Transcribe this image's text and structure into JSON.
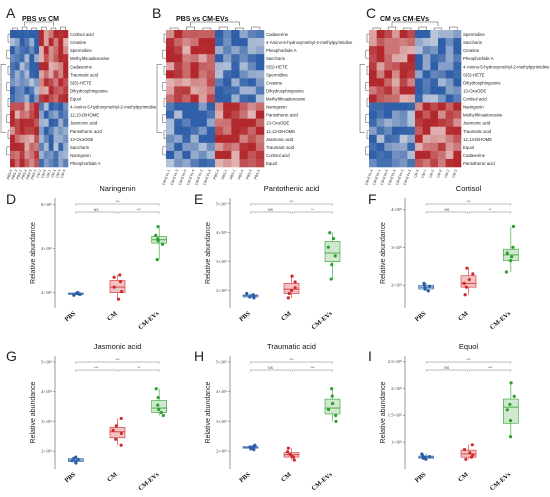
{
  "figure": {
    "panel_letters": [
      "A",
      "B",
      "C",
      "D",
      "E",
      "F",
      "G",
      "H",
      "I"
    ]
  },
  "colors": {
    "PBS": "#2b5fa5",
    "CM": "#d12b2b",
    "CM-EVs": "#2ca02c",
    "PBS_fill": "#c9d9ee",
    "CM_fill": "#f3c3c3",
    "CM-EVs_fill": "#cfe8cf",
    "heat_low": "#2f5fa8",
    "heat_mid": "#f4f1ee",
    "heat_high": "#b2282c",
    "dendro": "#444444"
  },
  "heatmaps": [
    {
      "panel": "A",
      "title": "PBS vs CM",
      "n_cols": 12,
      "rows": [
        "Cortisol acid",
        "Creatine",
        "Spermidine",
        "Methylthioadenosine",
        "Cadaverine",
        "Traumatic acid",
        "S(S)-HETE",
        "Dihydrosphingosine",
        "Equol",
        "4-Amino-5-hydroxymethyl-2-methylpyrimidine",
        "12,13-DiHOME",
        "Jasmonic acid",
        "Pantothenic acid",
        "13-OxoODE",
        "Saccharin",
        "Naringenin",
        "Pheophorbide A"
      ],
      "col_labels": [
        "PBS-6",
        "PBS-3",
        "PBS-1",
        "PBS-4",
        "PBS-5",
        "PBS-2",
        "CM-2",
        "CM-6",
        "CM-1",
        "CM-3",
        "CM-5",
        "CM-4"
      ]
    },
    {
      "panel": "B",
      "title": "PBS vs CM-EVs",
      "n_cols": 12,
      "rows": [
        "Cadaverine",
        "4-Amino-5-hydroxymethyl-2-methylpyrimidine",
        "Pheophorbide A",
        "Saccharin",
        "S(S)-HETE",
        "Spermidine",
        "Creatine",
        "Dihydrosphingosine",
        "Methylthioadenosine",
        "Naringenin",
        "Pantothenic acid",
        "13-OxoODE",
        "12,13-DiHOME",
        "Jasmonic acid",
        "Traumatic acid",
        "Cortisol acid",
        "Equol"
      ],
      "col_labels": [
        "CM-EVs-1",
        "CM-EVs-3",
        "CM-EVs-6",
        "CM-EVs-4",
        "CM-EVs-2",
        "CM-EVs-5",
        "PBS-4",
        "PBS-1",
        "PBS-2",
        "PBS-6",
        "PBS-3",
        "PBS-5"
      ]
    },
    {
      "panel": "C",
      "title": "CM vs CM-EVs",
      "n_cols": 12,
      "rows": [
        "Spermidine",
        "Saccharin",
        "Creatine",
        "Pheophorbide A",
        "4-Amino-5-hydroxymethyl-2-methylpyrimidine",
        "S(S)-HETE",
        "Dihydrosphingosine",
        "13-OxoODE",
        "Cortisol acid",
        "Naringenin",
        "Methylthioadenosine",
        "Jasmonic acid",
        "Traumatic acid",
        "12,13-DiHOME",
        "Equol",
        "Cadaverine",
        "Pantothenic acid"
      ],
      "col_labels": [
        "CM-EVs-4",
        "CM-EVs-1",
        "CM-EVs-6",
        "CM-EVs-3",
        "CM-EVs-2",
        "CM-EVs-5",
        "CM-4",
        "CM-1",
        "CM-5",
        "CM-6",
        "CM-2",
        "CM-3"
      ]
    }
  ],
  "chart_data": [
    {
      "panel": "D",
      "type": "box",
      "title": "Naringenin",
      "ylabel": "Relative abundance",
      "categories": [
        "PBS",
        "CM",
        "CM-EVs"
      ],
      "yticks": [
        "2×10⁶",
        "4×10⁶",
        "6×10⁶"
      ],
      "ytick_values": [
        2000000,
        4000000,
        6000000
      ],
      "ylim": [
        1300000,
        6300000
      ],
      "series": [
        {
          "name": "PBS",
          "box": [
            1880000,
            1920000,
            1950000,
            1980000,
            2000000
          ],
          "points": [
            1880000,
            1920000,
            1940000,
            1970000,
            1990000,
            2000000
          ]
        },
        {
          "name": "CM",
          "box": [
            1700000,
            2000000,
            2250000,
            2550000,
            2800000
          ],
          "points": [
            1700000,
            2050000,
            2250000,
            2500000,
            2700000,
            2800000
          ]
        },
        {
          "name": "CM-EVs",
          "box": [
            3500000,
            4250000,
            4400000,
            4550000,
            5000000
          ],
          "points": [
            3500000,
            4200000,
            4350000,
            4450000,
            4600000,
            5000000
          ]
        }
      ],
      "significance": [
        {
          "pair": [
            0,
            1
          ],
          "label": "NS"
        },
        {
          "pair": [
            1,
            2
          ],
          "label": "***"
        },
        {
          "pair": [
            0,
            2
          ],
          "label": "***"
        }
      ]
    },
    {
      "panel": "E",
      "type": "box",
      "title": "Pantothenic acid",
      "ylabel": "Relative abundance",
      "categories": [
        "PBS",
        "CM",
        "CM-EVs"
      ],
      "yticks": [
        "2×10⁵",
        "3×10⁵",
        "4×10⁵",
        "5×10⁵"
      ],
      "ytick_values": [
        200000,
        300000,
        400000,
        500000
      ],
      "ylim": [
        140000,
        520000
      ],
      "series": [
        {
          "name": "PBS",
          "box": [
            175000,
            178000,
            182000,
            185000,
            190000
          ],
          "points": [
            175000,
            178000,
            180000,
            183000,
            186000,
            190000
          ]
        },
        {
          "name": "CM",
          "box": [
            175000,
            190000,
            205000,
            225000,
            250000
          ],
          "points": [
            175000,
            190000,
            200000,
            210000,
            230000,
            250000
          ]
        },
        {
          "name": "CM-EVs",
          "box": [
            240000,
            300000,
            330000,
            370000,
            400000
          ],
          "points": [
            240000,
            290000,
            320000,
            350000,
            380000,
            400000
          ]
        }
      ],
      "significance": [
        {
          "pair": [
            0,
            1
          ],
          "label": "NS"
        },
        {
          "pair": [
            1,
            2
          ],
          "label": "**"
        },
        {
          "pair": [
            0,
            2
          ],
          "label": "***"
        }
      ]
    },
    {
      "panel": "F",
      "type": "box",
      "title": "Cortisol",
      "ylabel": "Relative abundance",
      "categories": [
        "PBS",
        "CM",
        "CM-EVs"
      ],
      "yticks": [
        "2×10⁵",
        "3×10⁵",
        "4×10⁵"
      ],
      "ytick_values": [
        200000,
        300000,
        400000
      ],
      "ylim": [
        140000,
        430000
      ],
      "series": [
        {
          "name": "PBS",
          "box": [
            185000,
            190000,
            195000,
            200000,
            205000
          ],
          "points": [
            185000,
            190000,
            193000,
            197000,
            200000,
            205000
          ]
        },
        {
          "name": "CM",
          "box": [
            175000,
            195000,
            205000,
            225000,
            245000
          ],
          "points": [
            175000,
            195000,
            205000,
            215000,
            230000,
            245000
          ]
        },
        {
          "name": "CM-EVs",
          "box": [
            235000,
            265000,
            280000,
            295000,
            355000
          ],
          "points": [
            235000,
            265000,
            275000,
            285000,
            300000,
            355000
          ]
        }
      ],
      "significance": [
        {
          "pair": [
            0,
            1
          ],
          "label": "NS"
        },
        {
          "pair": [
            1,
            2
          ],
          "label": "**"
        },
        {
          "pair": [
            0,
            2
          ],
          "label": "***"
        }
      ]
    },
    {
      "panel": "G",
      "type": "box",
      "title": "Jasmonic acid",
      "ylabel": "Relative abundance",
      "categories": [
        "PBS",
        "CM",
        "CM-EVs"
      ],
      "yticks": [
        "2×10⁵",
        "3×10⁵",
        "4×10⁵",
        "5×10⁵"
      ],
      "ytick_values": [
        200000,
        300000,
        400000,
        500000
      ],
      "ylim": [
        140000,
        520000
      ],
      "series": [
        {
          "name": "PBS",
          "box": [
            160000,
            165000,
            170000,
            175000,
            180000
          ],
          "points": [
            160000,
            165000,
            168000,
            172000,
            176000,
            180000
          ]
        },
        {
          "name": "CM",
          "box": [
            220000,
            245000,
            265000,
            280000,
            310000
          ],
          "points": [
            220000,
            240000,
            260000,
            270000,
            285000,
            310000
          ]
        },
        {
          "name": "CM-EVs",
          "box": [
            320000,
            330000,
            345000,
            370000,
            410000
          ],
          "points": [
            320000,
            330000,
            340000,
            355000,
            380000,
            410000
          ]
        }
      ],
      "significance": [
        {
          "pair": [
            0,
            1
          ],
          "label": "***"
        },
        {
          "pair": [
            1,
            2
          ],
          "label": "**"
        },
        {
          "pair": [
            0,
            2
          ],
          "label": "***"
        }
      ]
    },
    {
      "panel": "H",
      "type": "box",
      "title": "Traumatic acid",
      "ylabel": "Relative abundance",
      "categories": [
        "PBS",
        "CM",
        "CM-EVs"
      ],
      "yticks": [
        "2×10⁵",
        "3×10⁵",
        "4×10⁵",
        "5×10⁵"
      ],
      "ytick_values": [
        200000,
        300000,
        400000,
        500000
      ],
      "ylim": [
        140000,
        520000
      ],
      "series": [
        {
          "name": "PBS",
          "box": [
            205000,
            210000,
            213000,
            215000,
            220000
          ],
          "points": [
            205000,
            208000,
            212000,
            214000,
            216000,
            220000
          ]
        },
        {
          "name": "CM",
          "box": [
            170000,
            180000,
            188000,
            195000,
            210000
          ],
          "points": [
            170000,
            180000,
            185000,
            190000,
            198000,
            210000
          ]
        },
        {
          "name": "CM-EVs",
          "box": [
            300000,
            325000,
            345000,
            375000,
            410000
          ],
          "points": [
            300000,
            320000,
            340000,
            360000,
            385000,
            410000
          ]
        }
      ],
      "significance": [
        {
          "pair": [
            0,
            1
          ],
          "label": "NS"
        },
        {
          "pair": [
            1,
            2
          ],
          "label": "***"
        },
        {
          "pair": [
            0,
            2
          ],
          "label": "***"
        }
      ]
    },
    {
      "panel": "I",
      "type": "box",
      "title": "Equol",
      "ylabel": "Relative abundance",
      "categories": [
        "PBS",
        "CM",
        "CM-EVs"
      ],
      "yticks": [
        "1×10⁵",
        "1.5×10⁵",
        "2×10⁵",
        "2.5×10⁵"
      ],
      "ytick_values": [
        100000,
        150000,
        200000,
        250000
      ],
      "ylim": [
        50000,
        260000
      ],
      "series": [
        {
          "name": "PBS",
          "box": [
            68000,
            70000,
            72000,
            74000,
            78000
          ],
          "points": [
            68000,
            70000,
            72000,
            73000,
            75000,
            78000
          ]
        },
        {
          "name": "CM",
          "box": [
            68000,
            72000,
            78000,
            85000,
            95000
          ],
          "points": [
            68000,
            72000,
            76000,
            80000,
            86000,
            95000
          ]
        },
        {
          "name": "CM-EVs",
          "box": [
            110000,
            135000,
            165000,
            180000,
            210000
          ],
          "points": [
            110000,
            140000,
            160000,
            170000,
            185000,
            210000
          ]
        }
      ],
      "significance": [
        {
          "pair": [
            0,
            1
          ],
          "label": "NS"
        },
        {
          "pair": [
            1,
            2
          ],
          "label": "***"
        },
        {
          "pair": [
            0,
            2
          ],
          "label": "***"
        }
      ]
    }
  ]
}
